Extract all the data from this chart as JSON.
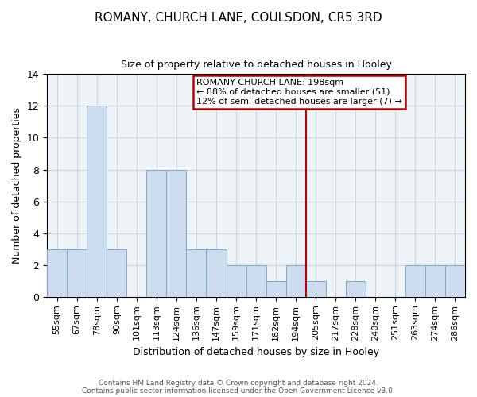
{
  "title": "ROMANY, CHURCH LANE, COULSDON, CR5 3RD",
  "subtitle": "Size of property relative to detached houses in Hooley",
  "xlabel": "Distribution of detached houses by size in Hooley",
  "ylabel": "Number of detached properties",
  "bar_labels": [
    "55sqm",
    "67sqm",
    "78sqm",
    "90sqm",
    "101sqm",
    "113sqm",
    "124sqm",
    "136sqm",
    "147sqm",
    "159sqm",
    "171sqm",
    "182sqm",
    "194sqm",
    "205sqm",
    "217sqm",
    "228sqm",
    "240sqm",
    "251sqm",
    "263sqm",
    "274sqm",
    "286sqm"
  ],
  "bar_heights": [
    3,
    3,
    12,
    3,
    0,
    8,
    8,
    3,
    3,
    2,
    2,
    1,
    2,
    1,
    0,
    1,
    0,
    0,
    2,
    2,
    2
  ],
  "bar_color": "#ccdcee",
  "bar_edge_color": "#7aaac8",
  "grid_color": "#c8d4e0",
  "reference_line_index": 13,
  "reference_line_color": "#bb0000",
  "annotation_title": "ROMANY CHURCH LANE: 198sqm",
  "annotation_line1": "← 88% of detached houses are smaller (51)",
  "annotation_line2": "12% of semi-detached houses are larger (7) →",
  "annotation_box_color": "#ffffff",
  "annotation_box_edge": "#bb0000",
  "ylim": [
    0,
    14
  ],
  "yticks": [
    0,
    2,
    4,
    6,
    8,
    10,
    12,
    14
  ],
  "footer1": "Contains HM Land Registry data © Crown copyright and database right 2024.",
  "footer2": "Contains public sector information licensed under the Open Government Licence v3.0."
}
